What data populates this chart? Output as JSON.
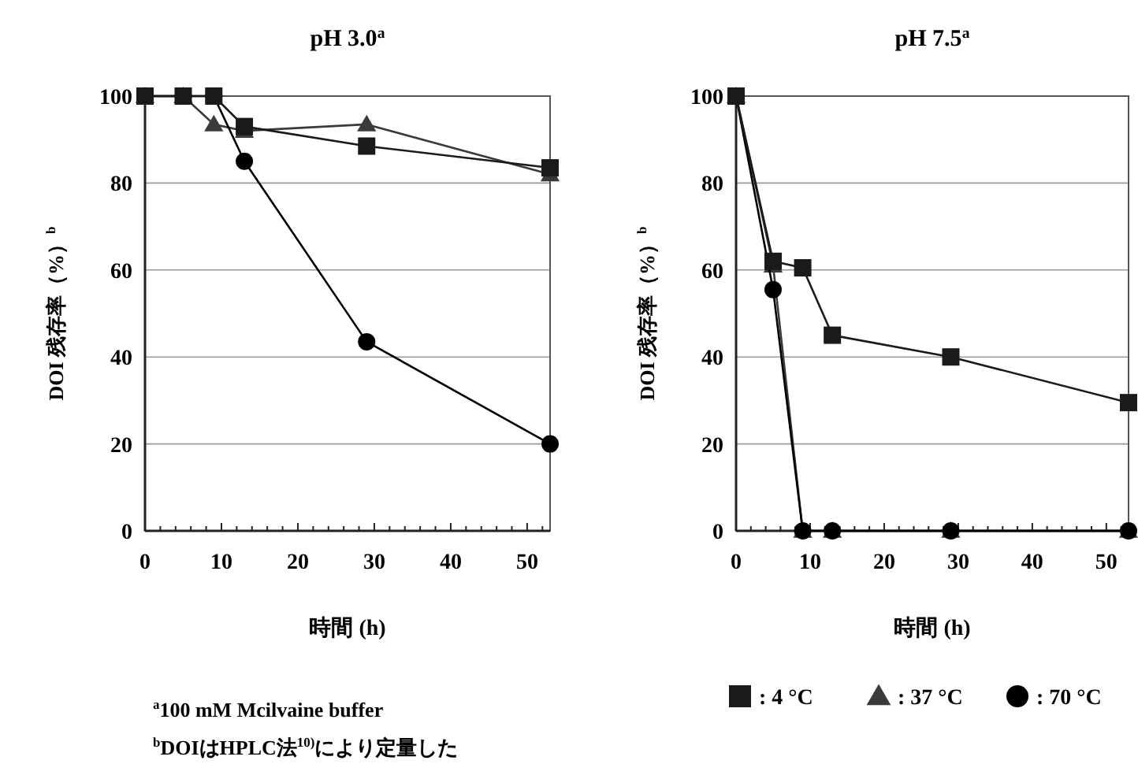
{
  "chart_data": [
    {
      "type": "line",
      "title": "pH 3.0$^{a}$",
      "xlabel": "時間 (h)",
      "ylabel": "DOI 残存率（%）$^{b}$",
      "x": [
        0,
        5,
        9,
        13,
        29,
        53
      ],
      "xlim": [
        0,
        53
      ],
      "ylim": [
        0,
        100
      ],
      "xticks": [
        0,
        {
          "value": 2,
          "label": null
        },
        {
          "value": 4,
          "label": null
        },
        {
          "value": 6,
          "label": null
        },
        {
          "value": 8,
          "label": null
        },
        10,
        {
          "value": 12,
          "label": null
        },
        {
          "value": 14,
          "label": null
        },
        {
          "value": 16,
          "label": null
        },
        {
          "value": 18,
          "label": null
        },
        20,
        {
          "value": 22,
          "label": null
        },
        {
          "value": 24,
          "label": null
        },
        {
          "value": 26,
          "label": null
        },
        {
          "value": 28,
          "label": null
        },
        30,
        {
          "value": 32,
          "label": null
        },
        {
          "value": 34,
          "label": null
        },
        {
          "value": 36,
          "label": null
        },
        {
          "value": 38,
          "label": null
        },
        40,
        {
          "value": 42,
          "label": null
        },
        {
          "value": 44,
          "label": null
        },
        {
          "value": 46,
          "label": null
        },
        {
          "value": 48,
          "label": null
        },
        50,
        {
          "value": 52,
          "label": null
        }
      ],
      "yticks": [
        0,
        20,
        40,
        60,
        80,
        100
      ],
      "grid": "y",
      "line_style": "solid",
      "series": [
        {
          "color": "#3a3a3a",
          "marker": "triangle",
          "values": [
            100,
            100,
            93.5,
            92,
            93.5,
            82
          ]
        },
        {
          "color": "#000000",
          "marker": "circle",
          "values": [
            100,
            100,
            100,
            85,
            43.5,
            20
          ]
        },
        {
          "color": "#1a1a1a",
          "marker": "square",
          "values": [
            100,
            100,
            100,
            93,
            88.5,
            83.5
          ]
        }
      ],
      "annotations": [
        "$^{a}$100 mM Mcilvaine buffer",
        "$^{b}$DOIはHPLC法$^{10)}$により定量した"
      ]
    },
    {
      "type": "line",
      "title": "pH 7.5$^{a}$",
      "xlabel": "時間 (h)",
      "ylabel": "DOI 残存率（%）$^{b}$",
      "x": [
        0,
        5,
        9,
        13,
        29,
        53
      ],
      "xlim": [
        0,
        53
      ],
      "ylim": [
        0,
        100
      ],
      "xticks": [
        0,
        {
          "value": 2,
          "label": null
        },
        {
          "value": 4,
          "label": null
        },
        {
          "value": 6,
          "label": null
        },
        {
          "value": 8,
          "label": null
        },
        10,
        {
          "value": 12,
          "label": null
        },
        {
          "value": 14,
          "label": null
        },
        {
          "value": 16,
          "label": null
        },
        {
          "value": 18,
          "label": null
        },
        20,
        {
          "value": 22,
          "label": null
        },
        {
          "value": 24,
          "label": null
        },
        {
          "value": 26,
          "label": null
        },
        {
          "value": 28,
          "label": null
        },
        30,
        {
          "value": 32,
          "label": null
        },
        {
          "value": 34,
          "label": null
        },
        {
          "value": 36,
          "label": null
        },
        {
          "value": 38,
          "label": null
        },
        40,
        {
          "value": 42,
          "label": null
        },
        {
          "value": 44,
          "label": null
        },
        {
          "value": 46,
          "label": null
        },
        {
          "value": 48,
          "label": null
        },
        50,
        {
          "value": 52,
          "label": null
        }
      ],
      "yticks": [
        0,
        20,
        40,
        60,
        80,
        100
      ],
      "grid": "y",
      "line_style": "solid",
      "legend": "bottom",
      "series": [
        {
          "name": ": 4 °C",
          "color": "#1a1a1a",
          "marker": "square",
          "values": [
            100,
            62,
            60.5,
            45,
            40,
            29.5
          ]
        },
        {
          "name": ": 37 °C",
          "color": "#3a3a3a",
          "marker": "triangle",
          "values": [
            100,
            61,
            0,
            0,
            0,
            0
          ]
        },
        {
          "name": ": 70 °C",
          "color": "#000000",
          "marker": "circle",
          "values": [
            100,
            55.5,
            0,
            0,
            0,
            0
          ]
        }
      ]
    }
  ]
}
